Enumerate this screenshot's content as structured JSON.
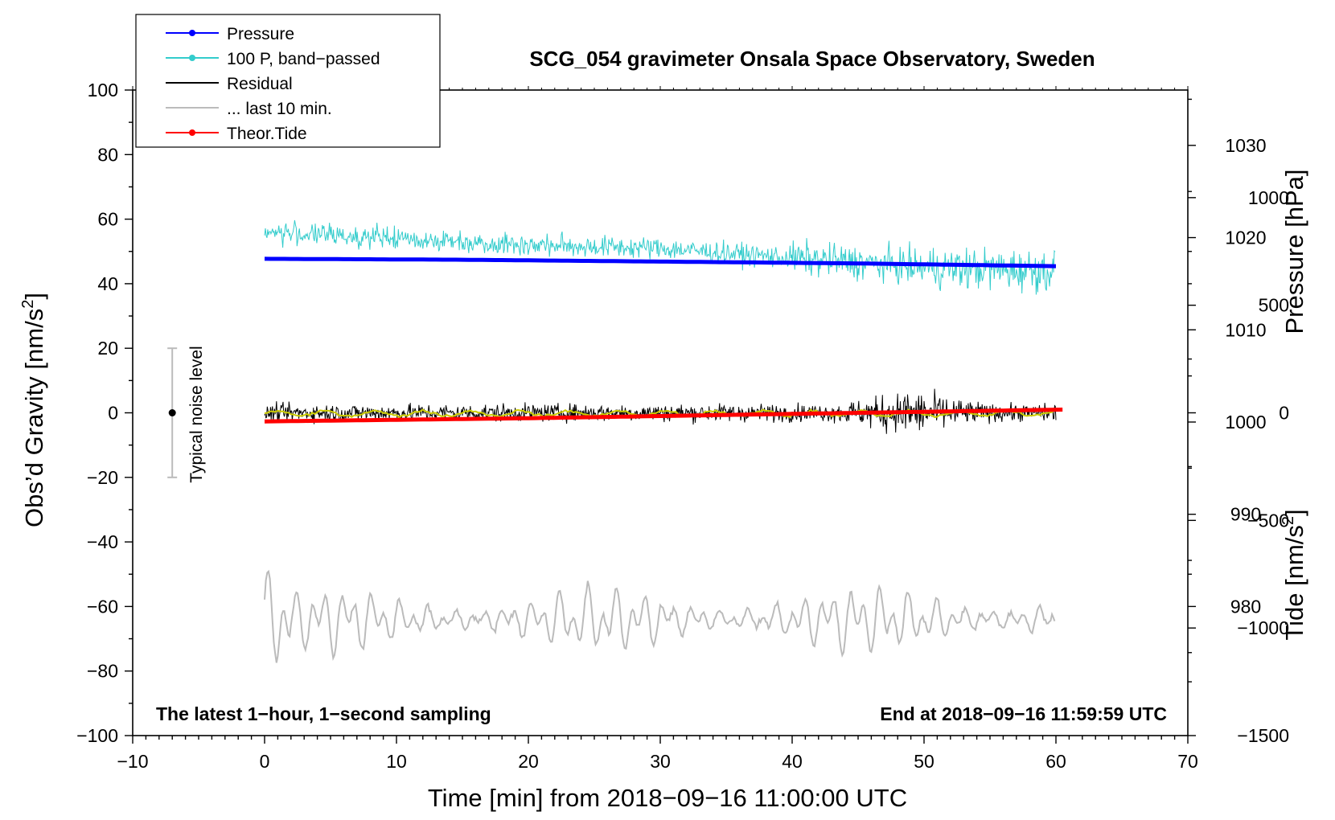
{
  "chart_data": {
    "type": "line",
    "title": "SCG_054 gravimeter Onsala Space Observatory, Sweden",
    "xlabel": "Time [min] from 2018−09−16 11:00:00 UTC",
    "ylabel_left": "Obs’d Gravity [nm/s",
    "ylabel_left_sup": "2",
    "ylabel_left_end": "]",
    "ylabel_pressure": "Pressure [hPa]",
    "ylabel_tide": "Tide [nm/s",
    "ylabel_tide_sup": "2",
    "ylabel_tide_end": "]",
    "xlim": [
      -10,
      70
    ],
    "ylim_left": [
      -100,
      100
    ],
    "pressure_range": [
      966,
      1036
    ],
    "tide_range": [
      -1500,
      1500
    ],
    "x_ticks": [
      {
        "v": -10,
        "label": "−10"
      },
      {
        "v": 0,
        "label": "0"
      },
      {
        "v": 10,
        "label": "10"
      },
      {
        "v": 20,
        "label": "20"
      },
      {
        "v": 30,
        "label": "30"
      },
      {
        "v": 40,
        "label": "40"
      },
      {
        "v": 50,
        "label": "50"
      },
      {
        "v": 60,
        "label": "60"
      },
      {
        "v": 70,
        "label": "70"
      }
    ],
    "y_ticks_left": [
      {
        "v": 100,
        "label": "100"
      },
      {
        "v": 80,
        "label": "80"
      },
      {
        "v": 60,
        "label": "60"
      },
      {
        "v": 40,
        "label": "40"
      },
      {
        "v": 20,
        "label": "20"
      },
      {
        "v": 0,
        "label": "0"
      },
      {
        "v": -20,
        "label": "−20"
      },
      {
        "v": -40,
        "label": "−40"
      },
      {
        "v": -60,
        "label": "−60"
      },
      {
        "v": -80,
        "label": "−80"
      },
      {
        "v": -100,
        "label": "−100"
      }
    ],
    "y_ticks_pressure": [
      {
        "v": 1030,
        "label": "1030"
      },
      {
        "v": 1020,
        "label": "1020"
      },
      {
        "v": 1010,
        "label": "1010"
      },
      {
        "v": 1000,
        "label": "1000"
      },
      {
        "v": 990,
        "label": "990"
      },
      {
        "v": 980,
        "label": "980"
      }
    ],
    "y_ticks_tide": [
      {
        "v": 1000,
        "label": "1000"
      },
      {
        "v": 500,
        "label": "500"
      },
      {
        "v": 0,
        "label": "0"
      },
      {
        "v": -500,
        "label": "−500"
      },
      {
        "v": -1000,
        "label": "−1000"
      },
      {
        "v": -1500,
        "label": "−1500"
      }
    ],
    "series": [
      {
        "name": "Pressure",
        "axis": "pressure",
        "color": "#0000ff",
        "x": [
          0,
          15,
          30,
          45,
          60
        ],
        "y": [
          1017.7,
          1017.6,
          1017.4,
          1017.2,
          1016.9
        ]
      },
      {
        "name": "100 P, band−passed",
        "axis": "left",
        "color": "#33cccc",
        "trend_x": [
          0,
          10,
          20,
          30,
          40,
          50,
          60
        ],
        "trend_y": [
          56,
          54,
          52,
          51,
          48,
          45,
          44
        ]
      },
      {
        "name": "Residual",
        "axis": "left",
        "color": "#000000",
        "x_range": [
          0,
          60
        ],
        "center": 0,
        "amplitude_normal": 3.5,
        "burst_window": [
          43,
          55
        ],
        "amplitude_burst": 10
      },
      {
        "name": "... last 10 min.",
        "axis": "left",
        "color": "#bbbbbb",
        "x_range": [
          0,
          60
        ],
        "center": -64,
        "amplitude": 7
      },
      {
        "name": "Theor.Tide",
        "axis": "tide",
        "color": "#ff0000",
        "x": [
          0,
          20,
          40,
          60.5
        ],
        "y": [
          -40,
          -25,
          -5,
          15
        ]
      }
    ],
    "residual_smooth_color": "#cccc00",
    "noise_bar": {
      "x": -7,
      "center": 0,
      "low": -20,
      "high": 20,
      "label": "Typical noise level"
    },
    "legend": [
      {
        "label": "Pressure",
        "color": "#0000ff",
        "marker": true
      },
      {
        "label": "100 P, band−passed",
        "color": "#33cccc",
        "marker": true
      },
      {
        "label": "Residual",
        "color": "#000000",
        "marker": false
      },
      {
        "label": "... last 10 min.",
        "color": "#bbbbbb",
        "marker": false
      },
      {
        "label": "Theor.Tide",
        "color": "#ff0000",
        "marker": true
      }
    ],
    "legend_position": "top-left",
    "annotations": {
      "bottom_left": "The latest 1−hour, 1−second sampling",
      "bottom_right": "End at 2018−09−16 11:59:59 UTC"
    }
  }
}
